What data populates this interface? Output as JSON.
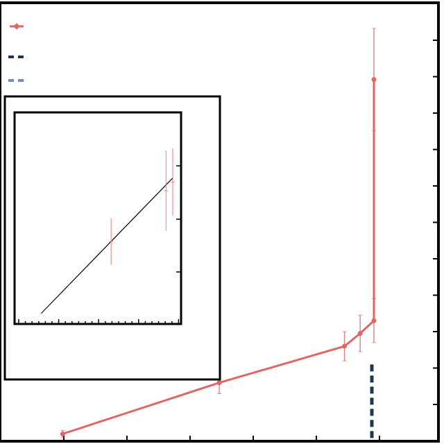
{
  "chart_data": [
    {
      "type": "line",
      "title": "",
      "xlabel": "",
      "ylabel": "",
      "xlim": [
        0,
        700
      ],
      "ylim": [
        0,
        120
      ],
      "grid": false,
      "legend_placement": "top-left",
      "series": [
        {
          "kind": "line-errorbars",
          "color": "#e06666",
          "x": [
            100,
            350,
            550,
            575,
            597,
            597
          ],
          "y": [
            2,
            16,
            26,
            29.5,
            33,
            99
          ],
          "yerr": [
            1,
            3,
            4,
            5,
            6,
            14
          ]
        },
        {
          "kind": "vline-dashed",
          "color": "#1f3552",
          "x": 597,
          "y_range": [
            0,
            21
          ]
        },
        {
          "kind": "legend-only-dashed",
          "color": "#6a8fd0"
        }
      ],
      "tick_counts": {
        "x_major": 6,
        "y_major": 11
      }
    },
    {
      "type": "line",
      "role": "inset",
      "title": "",
      "xlabel": "",
      "ylabel": "",
      "xlim": [
        0,
        100
      ],
      "ylim": [
        0,
        100
      ],
      "series": [
        {
          "kind": "line",
          "color": "#000000",
          "x": [
            16,
            95
          ],
          "y": [
            5,
            69
          ]
        },
        {
          "kind": "errorbars",
          "color": "#f08080",
          "x": [
            58,
            91,
            95
          ],
          "y": [
            39,
            63,
            67
          ],
          "yerr": [
            11,
            19,
            16
          ]
        }
      ]
    }
  ]
}
